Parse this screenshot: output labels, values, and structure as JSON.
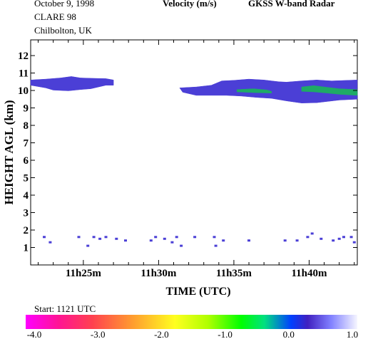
{
  "header": {
    "date": "October   9, 1998",
    "campaign": "CLARE 98",
    "site": "Chilbolton, UK",
    "variable": "Velocity (m/s)",
    "instrument": "GKSS  W-band Radar",
    "start": "Start: 1121 UTC"
  },
  "chart_data": {
    "type": "heatmap",
    "title": "Velocity (m/s)",
    "xlabel": "TIME (UTC)",
    "ylabel": "HEIGHT AGL (km)",
    "x_tick_labels": [
      "11h25m",
      "11h30m",
      "11h35m",
      "11h40m"
    ],
    "x_ticks_min": [
      25,
      30,
      35,
      40
    ],
    "xlim_min": [
      21.5,
      43.2
    ],
    "ylim": [
      0,
      12.9
    ],
    "y_ticks": [
      1,
      2,
      3,
      4,
      5,
      6,
      7,
      8,
      9,
      10,
      11,
      12
    ],
    "grid": false,
    "colorbar": {
      "min": -4.0,
      "max": 1.0,
      "tick_labels": [
        "-4.0",
        "-3.0",
        "-2.0",
        "-1.0",
        "0.0",
        "1.0"
      ],
      "colors": [
        "#ff00ff",
        "#ff3070",
        "#ffff00",
        "#00ff00",
        "#0000ff",
        "#ffffff"
      ]
    },
    "layers": [
      {
        "name": "cirrus_band_early",
        "color": "#4b3fd6",
        "top": [
          [
            21.5,
            10.6
          ],
          [
            22.5,
            10.65
          ],
          [
            23.5,
            10.72
          ],
          [
            24.2,
            10.8
          ],
          [
            24.8,
            10.72
          ],
          [
            25.5,
            10.7
          ],
          [
            26.5,
            10.68
          ],
          [
            27.0,
            10.6
          ]
        ],
        "bottom": [
          [
            27.0,
            10.3
          ],
          [
            26.5,
            10.3
          ],
          [
            25.5,
            10.1
          ],
          [
            24.8,
            10.05
          ],
          [
            24.0,
            9.98
          ],
          [
            23.0,
            10.02
          ],
          [
            22.5,
            10.15
          ],
          [
            21.5,
            10.3
          ]
        ]
      },
      {
        "name": "cirrus_band_late",
        "color": "#4b3fd6",
        "top": [
          [
            31.4,
            10.15
          ],
          [
            32.5,
            10.2
          ],
          [
            33.5,
            10.3
          ],
          [
            34.2,
            10.55
          ],
          [
            35.0,
            10.58
          ],
          [
            36.0,
            10.65
          ],
          [
            37.0,
            10.6
          ],
          [
            38.0,
            10.5
          ],
          [
            38.5,
            10.48
          ],
          [
            39.5,
            10.55
          ],
          [
            40.5,
            10.6
          ],
          [
            41.5,
            10.55
          ],
          [
            43.2,
            10.6
          ]
        ],
        "bottom": [
          [
            43.2,
            9.5
          ],
          [
            42.0,
            9.45
          ],
          [
            40.5,
            9.3
          ],
          [
            39.5,
            9.28
          ],
          [
            38.5,
            9.4
          ],
          [
            37.5,
            9.55
          ],
          [
            36.5,
            9.6
          ],
          [
            35.5,
            9.68
          ],
          [
            34.5,
            9.72
          ],
          [
            33.5,
            9.72
          ],
          [
            32.5,
            9.72
          ],
          [
            31.6,
            9.9
          ]
        ]
      },
      {
        "name": "velocity_patch_1",
        "color": "#1faa66",
        "top": [
          [
            35.2,
            10.05
          ],
          [
            36.3,
            10.1
          ],
          [
            37.2,
            10.03
          ],
          [
            37.5,
            9.95
          ]
        ],
        "bottom": [
          [
            37.5,
            9.85
          ],
          [
            36.3,
            9.88
          ],
          [
            35.2,
            9.92
          ]
        ]
      },
      {
        "name": "velocity_patch_2",
        "color": "#1faa66",
        "top": [
          [
            39.5,
            10.2
          ],
          [
            40.3,
            10.28
          ],
          [
            41.2,
            10.18
          ],
          [
            42.0,
            10.1
          ],
          [
            43.2,
            10.05
          ]
        ],
        "bottom": [
          [
            43.2,
            9.72
          ],
          [
            42.0,
            9.78
          ],
          [
            41.2,
            9.85
          ],
          [
            40.3,
            9.92
          ],
          [
            39.5,
            9.95
          ]
        ]
      }
    ],
    "speckles": [
      [
        22.4,
        1.6
      ],
      [
        22.8,
        1.3
      ],
      [
        24.7,
        1.6
      ],
      [
        25.3,
        1.1
      ],
      [
        25.7,
        1.6
      ],
      [
        26.1,
        1.5
      ],
      [
        26.5,
        1.6
      ],
      [
        27.2,
        1.5
      ],
      [
        27.8,
        1.4
      ],
      [
        29.5,
        1.4
      ],
      [
        29.8,
        1.6
      ],
      [
        30.4,
        1.5
      ],
      [
        30.9,
        1.3
      ],
      [
        31.2,
        1.6
      ],
      [
        31.5,
        1.1
      ],
      [
        32.4,
        1.6
      ],
      [
        33.7,
        1.6
      ],
      [
        33.8,
        1.1
      ],
      [
        34.3,
        1.4
      ],
      [
        36.0,
        1.4
      ],
      [
        38.4,
        1.4
      ],
      [
        39.2,
        1.4
      ],
      [
        39.9,
        1.6
      ],
      [
        40.2,
        1.8
      ],
      [
        40.8,
        1.5
      ],
      [
        41.6,
        1.4
      ],
      [
        42.0,
        1.5
      ],
      [
        42.3,
        1.6
      ],
      [
        42.8,
        1.6
      ],
      [
        43.0,
        1.3
      ]
    ]
  }
}
